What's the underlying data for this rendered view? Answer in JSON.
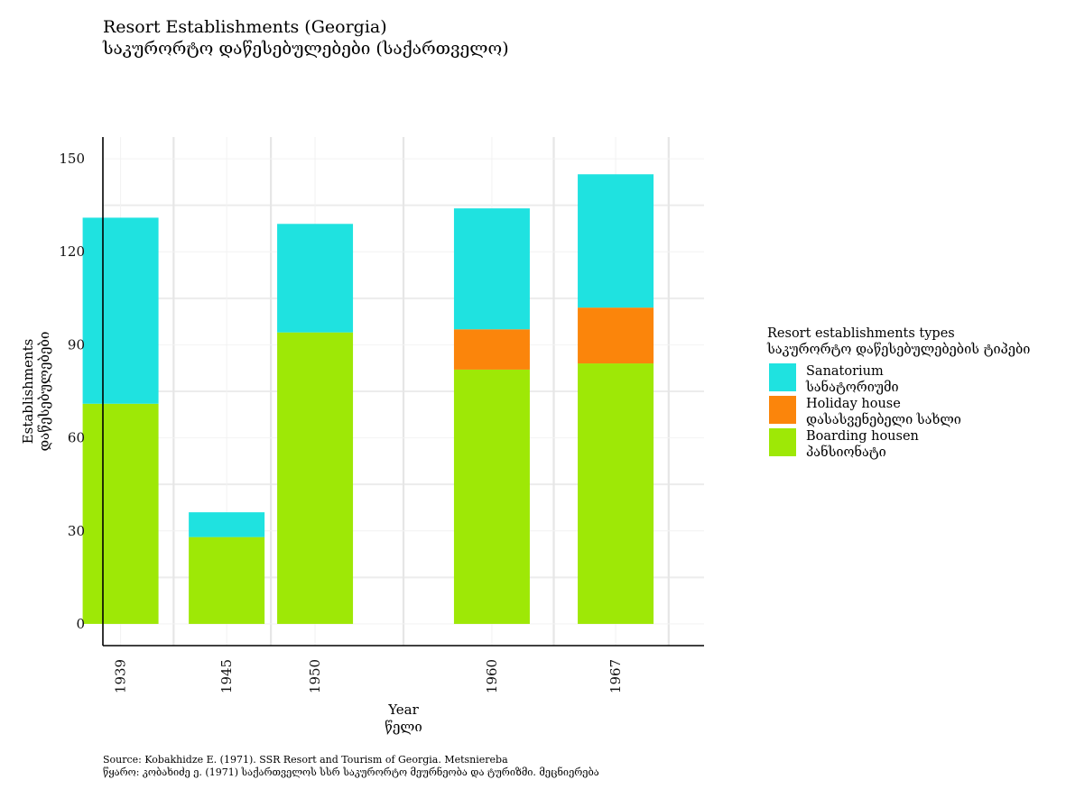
{
  "chart_data": {
    "type": "bar",
    "stacked": true,
    "title": "Resort Establishments (Georgia)",
    "subtitle": "საკურორტო დაწესებულებები (საქართველო)",
    "xlabel": [
      "Year",
      "წელი"
    ],
    "ylabel": [
      "Establishments",
      "დაწესებულებები"
    ],
    "categories": [
      "1939",
      "1945",
      "1950",
      "1960",
      "1967"
    ],
    "x": [
      1939,
      1945,
      1950,
      1960,
      1967
    ],
    "xlim": [
      1938,
      1972
    ],
    "ylim": [
      -7,
      157
    ],
    "yticks": [
      0,
      30,
      60,
      90,
      120,
      150
    ],
    "xgrid_minor": [
      1942,
      1947.5,
      1955,
      1963.5,
      1970
    ],
    "grid": true,
    "legend": {
      "title": [
        "Resort establishments types",
        "საკურორტო დაწესებულებების ტიპები"
      ],
      "placement": "right",
      "order": [
        "sanatorium",
        "holiday_house",
        "boarding_house"
      ]
    },
    "series": [
      {
        "key": "boarding_house",
        "name": [
          "Boarding housen",
          "პანსიონატი"
        ],
        "color": "#9ee806",
        "values": [
          71,
          28,
          94,
          82,
          84
        ]
      },
      {
        "key": "holiday_house",
        "name": [
          "Holiday house",
          "დასასვენებელი სახლი"
        ],
        "color": "#fb850b",
        "values": [
          0,
          0,
          0,
          13,
          18
        ]
      },
      {
        "key": "sanatorium",
        "name": [
          "Sanatorium",
          "სანატორიუმი"
        ],
        "color": "#1fe2e0",
        "values": [
          60,
          8,
          35,
          39,
          43
        ]
      }
    ],
    "caption": [
      "Source: Kobakhidze E. (1971). SSR Resort and Tourism of Georgia. Metsniereba",
      "წყარო: კობახიძე ე. (1971) საქართველოს სსრ საკურორტო მეურნეობა და ტურიზმი. მეცნიერება"
    ]
  }
}
